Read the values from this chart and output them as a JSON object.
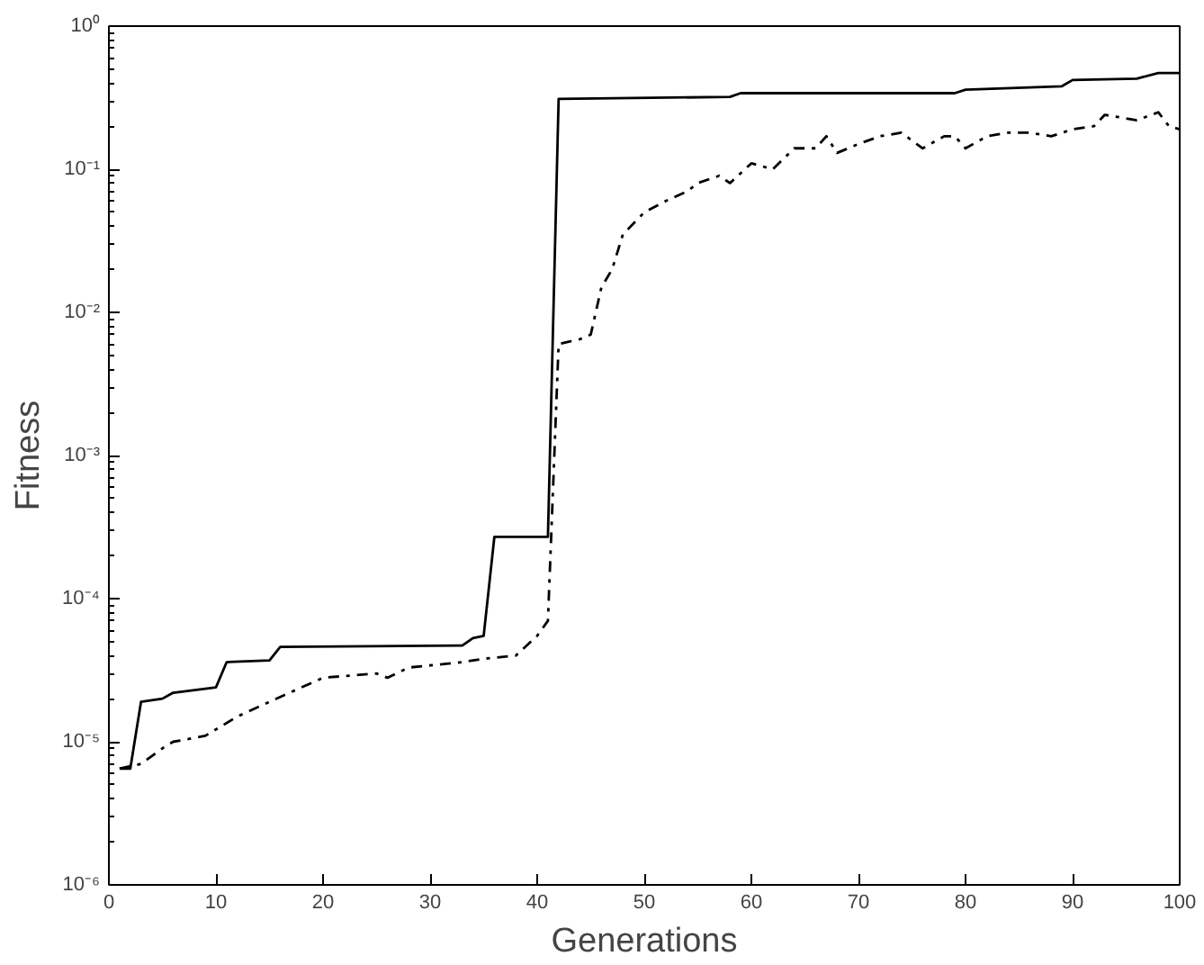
{
  "chart_data": {
    "type": "line",
    "xlabel": "Generations",
    "ylabel": "Fitness",
    "log": "y",
    "grid": false,
    "marker": "none",
    "xlim": [
      0,
      100
    ],
    "xticks": [
      0,
      10,
      20,
      30,
      40,
      50,
      60,
      70,
      80,
      90,
      100
    ],
    "ylim": [
      1e-06,
      1
    ],
    "yticks": [
      {
        "value": 1e-06,
        "label": "10⁻⁶"
      },
      {
        "value": 1e-05,
        "label": "10⁻⁵"
      },
      {
        "value": 0.0001,
        "label": "10⁻⁴"
      },
      {
        "value": 0.001,
        "label": "10⁻³"
      },
      {
        "value": 0.01,
        "label": "10⁻²"
      },
      {
        "value": 0.1,
        "label": "10⁻¹"
      },
      {
        "value": 1,
        "label": "10⁰"
      }
    ],
    "series": [
      {
        "color": "#000000",
        "line_style": "solid",
        "x": [
          1,
          2,
          3,
          5,
          6,
          10,
          11,
          15,
          16,
          33,
          34,
          35,
          36,
          41,
          42,
          58,
          59,
          79,
          80,
          89,
          90,
          96,
          98,
          100
        ],
        "values": [
          6.5e-06,
          6.5e-06,
          1.9e-05,
          2e-05,
          2.2e-05,
          2.4e-05,
          3.6e-05,
          3.7e-05,
          4.6e-05,
          4.7e-05,
          5.3e-05,
          5.5e-05,
          0.00027,
          0.00027,
          0.31,
          0.32,
          0.34,
          0.34,
          0.36,
          0.38,
          0.42,
          0.43,
          0.47,
          0.47
        ]
      },
      {
        "color": "#000000",
        "line_style": "dashdot",
        "x": [
          1,
          3,
          5,
          6,
          9,
          12,
          15,
          18,
          20,
          25,
          26,
          28,
          33,
          35,
          38,
          40,
          41,
          42,
          44,
          45,
          46,
          47,
          48,
          50,
          52,
          54,
          55,
          57,
          58,
          60,
          62,
          64,
          66,
          67,
          68,
          70,
          72,
          74,
          76,
          78,
          79,
          80,
          82,
          84,
          86,
          88,
          90,
          92,
          93,
          96,
          98,
          99,
          100
        ],
        "values": [
          6.5e-06,
          7e-06,
          9e-06,
          1e-05,
          1.1e-05,
          1.5e-05,
          1.9e-05,
          2.4e-05,
          2.8e-05,
          3e-05,
          2.8e-05,
          3.3e-05,
          3.6e-05,
          3.8e-05,
          4e-05,
          5.5e-05,
          7e-05,
          0.006,
          0.0065,
          0.007,
          0.015,
          0.02,
          0.035,
          0.05,
          0.06,
          0.07,
          0.08,
          0.09,
          0.08,
          0.11,
          0.1,
          0.14,
          0.14,
          0.17,
          0.13,
          0.15,
          0.17,
          0.18,
          0.14,
          0.17,
          0.17,
          0.14,
          0.17,
          0.18,
          0.18,
          0.17,
          0.19,
          0.2,
          0.24,
          0.22,
          0.25,
          0.2,
          0.19
        ]
      }
    ]
  }
}
